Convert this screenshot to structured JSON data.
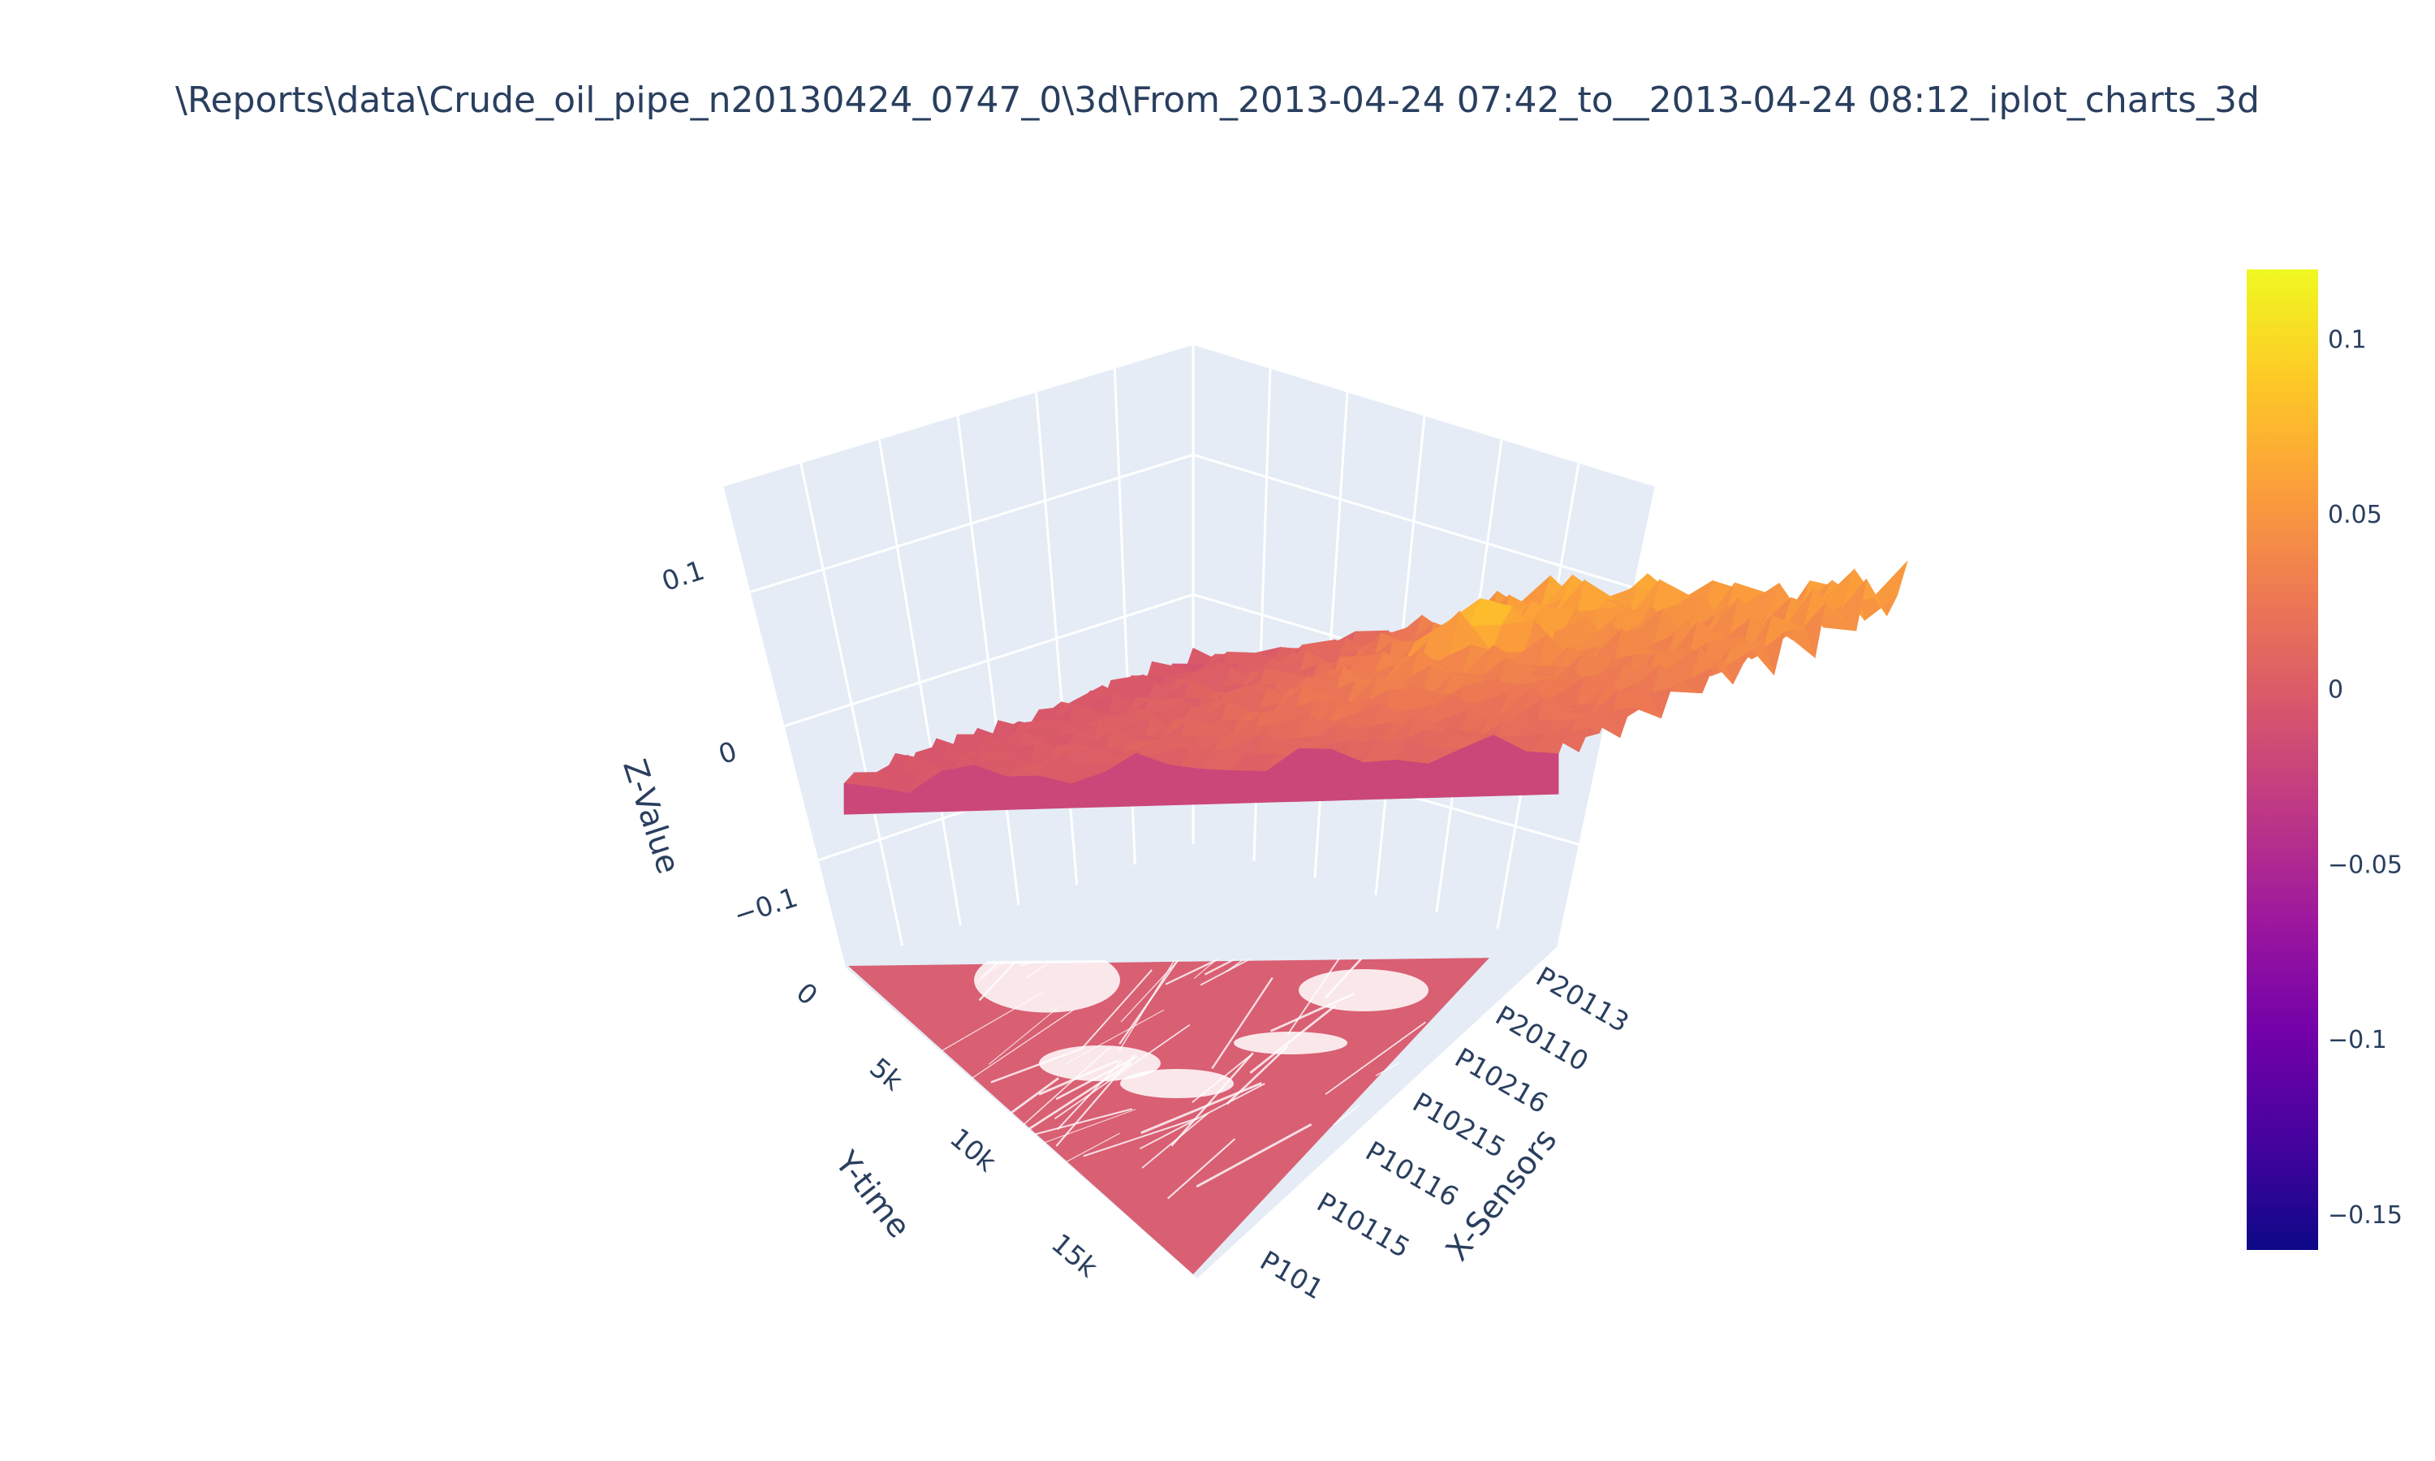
{
  "chart_data": {
    "type": "surface",
    "title": "\\Reports\\data\\Crude_oil_pipe_n20130424_0747_0\\3d\\From_2013-04-24 07:42_to__2013-04-24 08:12_iplot_charts_3d",
    "xlabel": "X-Sensors",
    "ylabel": "Y-time",
    "zlabel": "Z-Value",
    "x_ticks": [
      "P101",
      "P10115",
      "P10116",
      "P10215",
      "P10216",
      "P20110",
      "P20113"
    ],
    "y_ticks": [
      "0",
      "5k",
      "10k",
      "15k"
    ],
    "z_ticks": [
      "−0.1",
      "0",
      "0.1"
    ],
    "zlim": [
      -0.16,
      0.12
    ],
    "colorbar": {
      "ticks": [
        "0.1",
        "0.05",
        "0",
        "−0.05",
        "−0.1",
        "−0.15"
      ],
      "tick_values": [
        0.1,
        0.05,
        0,
        -0.05,
        -0.1,
        -0.15
      ],
      "range": [
        -0.16,
        0.12
      ],
      "colorscale": [
        "#0d0887",
        "#46039f",
        "#7201a8",
        "#9c179e",
        "#bd3786",
        "#d8576b",
        "#ed7953",
        "#fb9f3a",
        "#fdca26",
        "#f0f921"
      ]
    },
    "projection_color": "#d8576b",
    "grid": true
  }
}
